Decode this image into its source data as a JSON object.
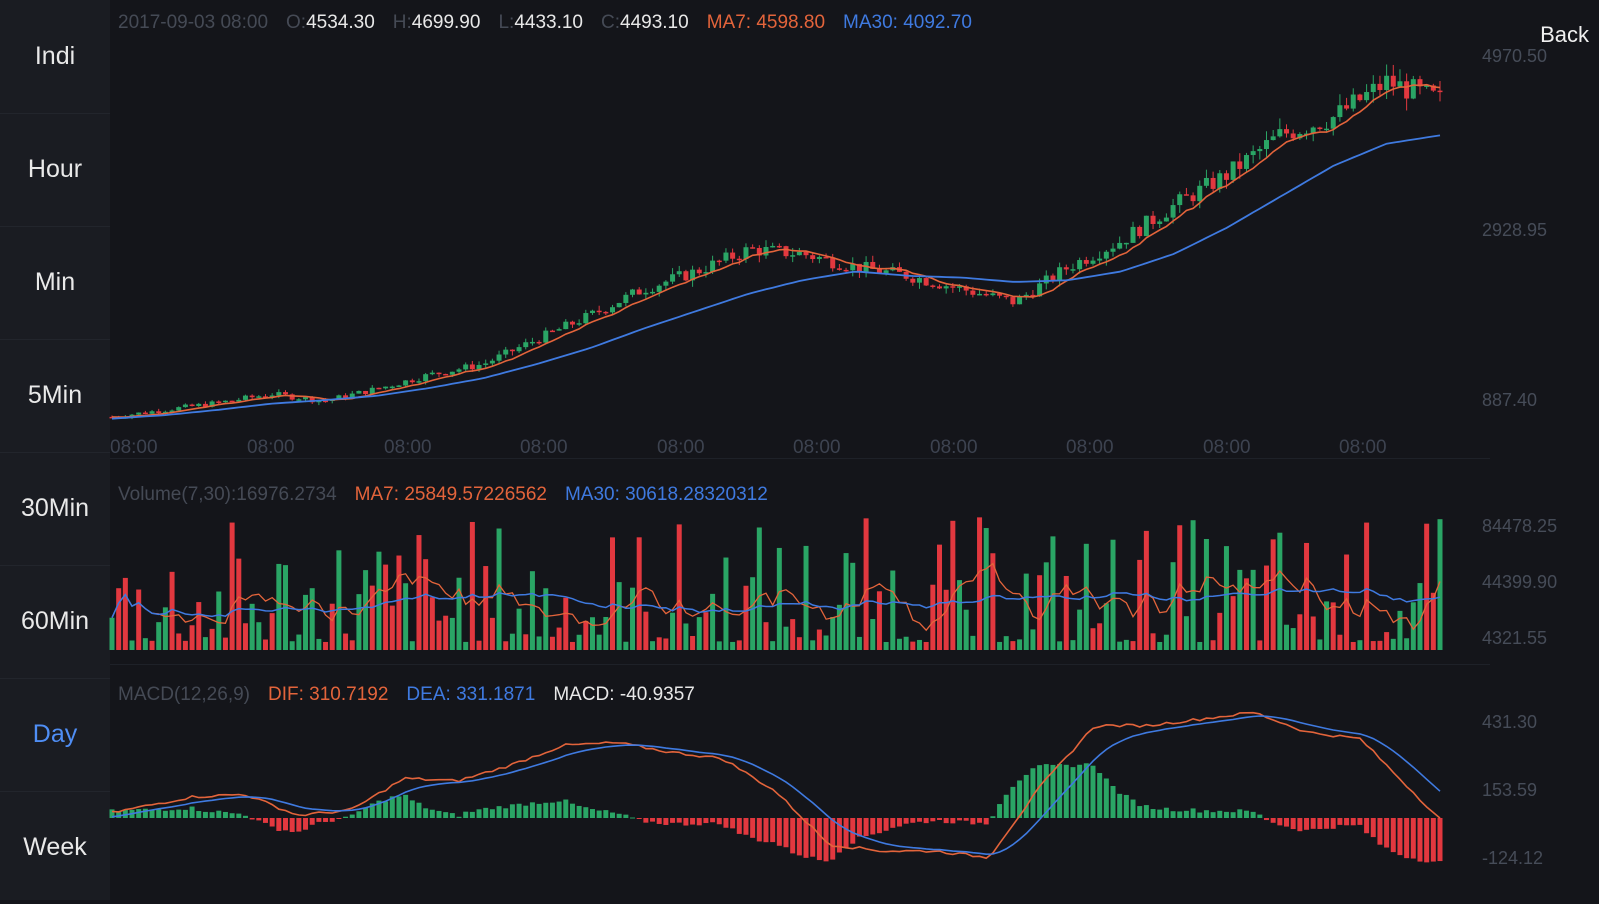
{
  "sidebar": {
    "items": [
      {
        "label": "Indi",
        "active": false
      },
      {
        "label": "Hour",
        "active": false
      },
      {
        "label": "Min",
        "active": false
      },
      {
        "label": "5Min",
        "active": false
      },
      {
        "label": "30Min",
        "active": false
      },
      {
        "label": "60Min",
        "active": false
      },
      {
        "label": "Day",
        "active": true
      },
      {
        "label": "Week",
        "active": false
      }
    ]
  },
  "header": {
    "date": "2017-09-03 08:00",
    "open_label": "O:",
    "open": "4534.30",
    "high_label": "H:",
    "high": "4699.90",
    "low_label": "L:",
    "low": "4433.10",
    "close_label": "C:",
    "close": "4493.10",
    "ma7_label": "MA7:",
    "ma7": "4598.80",
    "ma30_label": "MA30:",
    "ma30": "4092.70",
    "back_label": "Back"
  },
  "price_axis": {
    "top": "4970.50",
    "mid": "2928.95",
    "bottom": "887.40"
  },
  "time_axis": [
    "08:00",
    "08:00",
    "08:00",
    "08:00",
    "08:00",
    "08:00",
    "08:00",
    "08:00",
    "08:00",
    "08:00"
  ],
  "volume": {
    "label": "Volume(7,30):16976.2734",
    "ma7_label": "MA7:",
    "ma7": "25849.57226562",
    "ma30_label": "MA30:",
    "ma30": "30618.28320312",
    "axis": {
      "top": "84478.25",
      "mid": "44399.90",
      "bottom": "4321.55"
    }
  },
  "macd": {
    "label": "MACD(12,26,9)",
    "dif_label": "DIF:",
    "dif": "310.7192",
    "dea_label": "DEA:",
    "dea": "331.1871",
    "macd_label": "MACD:",
    "macd": "-40.9357",
    "axis": {
      "top": "431.30",
      "mid": "153.59",
      "bottom": "-124.12"
    }
  },
  "colors": {
    "up": "#2aa565",
    "down": "#e2383f",
    "ma7": "#e3643b",
    "ma30": "#3f7ae0",
    "background": "#14151a"
  },
  "chart_data": {
    "type": "candlestick",
    "x_axis": "date",
    "price_range": [
      887.4,
      4970.5
    ],
    "volume_range": [
      4321.55,
      84478.25
    ],
    "macd_range": [
      -124.12,
      431.3
    ],
    "trend_close": [
      900,
      980,
      1060,
      1160,
      1080,
      1220,
      1380,
      1500,
      1780,
      2050,
      2350,
      2550,
      2800,
      2750,
      2600,
      2500,
      2350,
      2200,
      2600,
      2900,
      3300,
      3650,
      4100,
      4300,
      4700,
      4493.1
    ],
    "trend_ma30": [
      880,
      920,
      980,
      1050,
      1090,
      1140,
      1230,
      1340,
      1500,
      1680,
      1900,
      2100,
      2300,
      2450,
      2550,
      2500,
      2480,
      2430,
      2450,
      2550,
      2750,
      3050,
      3400,
      3750,
      4000,
      4092.7
    ]
  }
}
